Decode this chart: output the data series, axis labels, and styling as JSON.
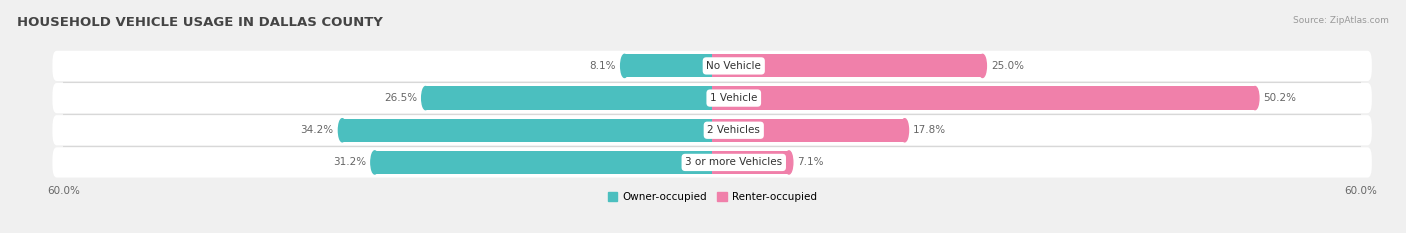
{
  "title": "HOUSEHOLD VEHICLE USAGE IN DALLAS COUNTY",
  "source": "Source: ZipAtlas.com",
  "categories": [
    "No Vehicle",
    "1 Vehicle",
    "2 Vehicles",
    "3 or more Vehicles"
  ],
  "owner_values": [
    8.1,
    26.5,
    34.2,
    31.2
  ],
  "renter_values": [
    25.0,
    50.2,
    17.8,
    7.1
  ],
  "owner_color": "#4bbfbf",
  "renter_color": "#f080aa",
  "axis_max": 60.0,
  "owner_label": "Owner-occupied",
  "renter_label": "Renter-occupied",
  "bg_color": "#f0f0f0",
  "row_bg_color": "#ffffff",
  "sep_color": "#d8d8d8",
  "title_fontsize": 9.5,
  "source_fontsize": 6.5,
  "label_fontsize": 7.5,
  "value_fontsize": 7.5,
  "cat_fontsize": 7.5,
  "bar_height": 0.72,
  "figsize": [
    14.06,
    2.33
  ],
  "dpi": 100
}
